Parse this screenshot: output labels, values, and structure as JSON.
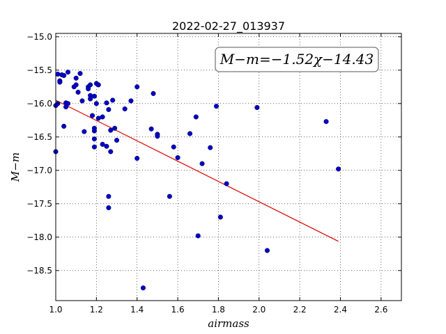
{
  "chart_data": {
    "type": "scatter",
    "title": "2022-02-27_013937",
    "xlabel": "airmass",
    "ylabel": "M−m",
    "xlim": [
      1.0,
      2.7
    ],
    "ylim": [
      -18.95,
      -14.95
    ],
    "x_ticks": [
      1.0,
      1.2,
      1.4,
      1.6,
      1.8,
      2.0,
      2.2,
      2.4,
      2.6
    ],
    "x_tick_labels": [
      "1.0",
      "1.2",
      "1.4",
      "1.6",
      "1.8",
      "2.0",
      "2.2",
      "2.4",
      "2.6"
    ],
    "y_ticks": [
      -15.0,
      -15.5,
      -16.0,
      -16.5,
      -17.0,
      -17.5,
      -18.0,
      -18.5
    ],
    "y_tick_labels": [
      "−15.0",
      "−15.5",
      "−16.0",
      "−16.5",
      "−17.0",
      "−17.5",
      "−18.0",
      "−18.5"
    ],
    "grid": true,
    "annotation": "M−m=−1.52χ−14.43",
    "annotation_position": "top-right",
    "colors": {
      "points": "#0000cc",
      "fit": "#dd0000"
    },
    "fit": {
      "slope": -1.52,
      "intercept": -14.43,
      "x_range": [
        1.0,
        2.39
      ]
    },
    "points": [
      [
        1.0,
        -16.03
      ],
      [
        1.0,
        -16.72
      ],
      [
        1.01,
        -15.56
      ],
      [
        1.01,
        -16.0
      ],
      [
        1.02,
        -15.66
      ],
      [
        1.02,
        -15.68
      ],
      [
        1.03,
        -15.57
      ],
      [
        1.04,
        -15.58
      ],
      [
        1.04,
        -16.34
      ],
      [
        1.05,
        -16.05
      ],
      [
        1.05,
        -15.99
      ],
      [
        1.06,
        -16.0
      ],
      [
        1.06,
        -15.53
      ],
      [
        1.09,
        -15.75
      ],
      [
        1.1,
        -15.62
      ],
      [
        1.1,
        -15.72
      ],
      [
        1.11,
        -15.83
      ],
      [
        1.12,
        -15.55
      ],
      [
        1.13,
        -15.96
      ],
      [
        1.14,
        -16.42
      ],
      [
        1.16,
        -15.75
      ],
      [
        1.16,
        -15.78
      ],
      [
        1.17,
        -15.72
      ],
      [
        1.17,
        -15.88
      ],
      [
        1.17,
        -15.93
      ],
      [
        1.18,
        -16.18
      ],
      [
        1.19,
        -16.41
      ],
      [
        1.19,
        -16.53
      ],
      [
        1.19,
        -16.65
      ],
      [
        1.19,
        -16.37
      ],
      [
        1.19,
        -15.89
      ],
      [
        1.2,
        -16.0
      ],
      [
        1.2,
        -15.7
      ],
      [
        1.21,
        -15.72
      ],
      [
        1.21,
        -16.22
      ],
      [
        1.23,
        -16.2
      ],
      [
        1.23,
        -16.61
      ],
      [
        1.25,
        -16.64
      ],
      [
        1.25,
        -15.99
      ],
      [
        1.26,
        -16.09
      ],
      [
        1.26,
        -17.39
      ],
      [
        1.26,
        -17.56
      ],
      [
        1.27,
        -16.4
      ],
      [
        1.27,
        -16.72
      ],
      [
        1.28,
        -15.95
      ],
      [
        1.29,
        -16.37
      ],
      [
        1.3,
        -16.55
      ],
      [
        1.34,
        -16.08
      ],
      [
        1.37,
        -15.96
      ],
      [
        1.4,
        -15.75
      ],
      [
        1.4,
        -16.82
      ],
      [
        1.43,
        -18.76
      ],
      [
        1.47,
        -16.38
      ],
      [
        1.48,
        -15.85
      ],
      [
        1.5,
        -16.46
      ],
      [
        1.5,
        -16.49
      ],
      [
        1.56,
        -17.39
      ],
      [
        1.58,
        -16.65
      ],
      [
        1.6,
        -16.81
      ],
      [
        1.66,
        -16.45
      ],
      [
        1.69,
        -16.2
      ],
      [
        1.7,
        -17.98
      ],
      [
        1.72,
        -16.9
      ],
      [
        1.76,
        -16.66
      ],
      [
        1.79,
        -16.04
      ],
      [
        1.81,
        -17.7
      ],
      [
        1.84,
        -17.2
      ],
      [
        1.99,
        -16.06
      ],
      [
        2.04,
        -18.2
      ],
      [
        2.33,
        -16.27
      ],
      [
        2.39,
        -16.98
      ]
    ]
  }
}
